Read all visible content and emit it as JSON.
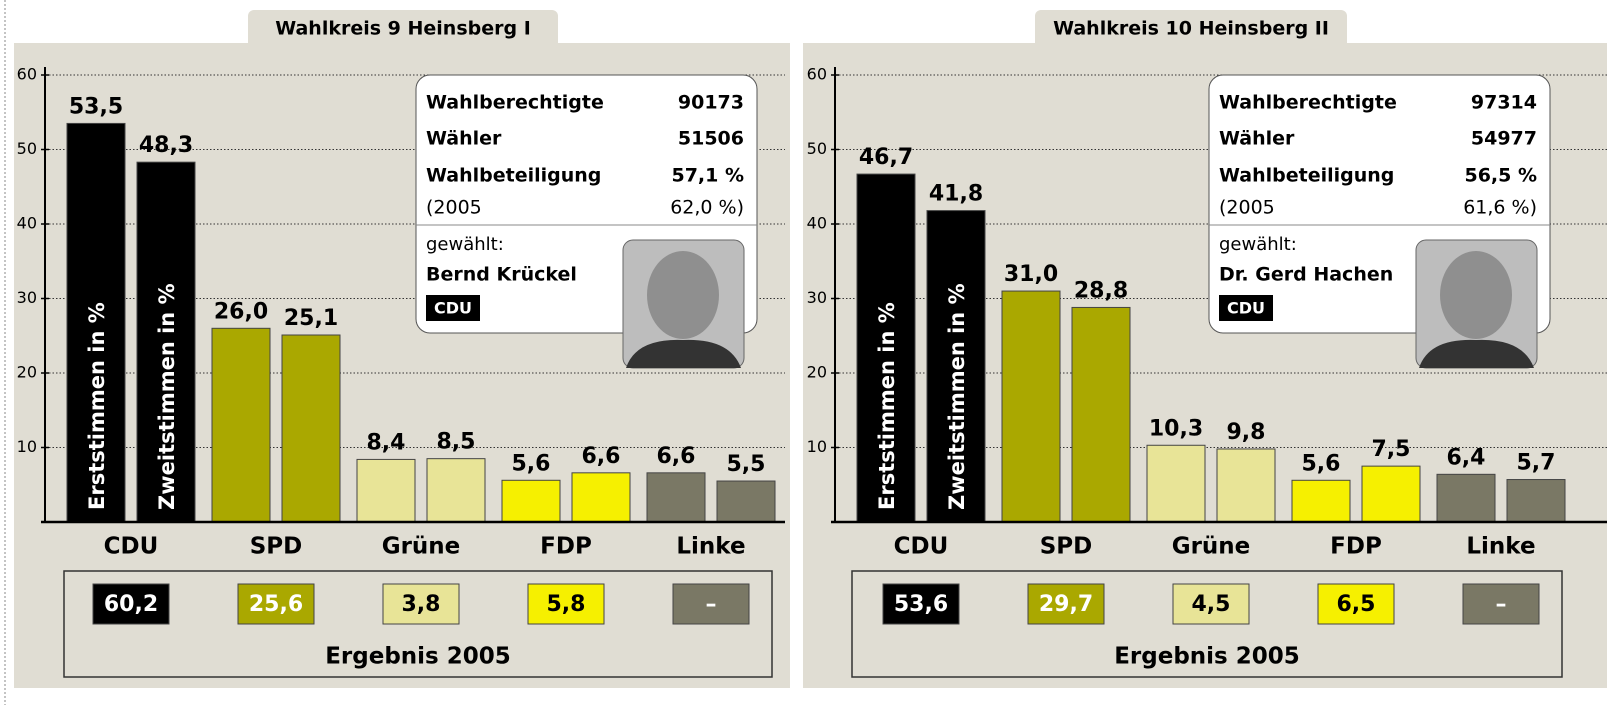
{
  "chart_data": [
    {
      "type": "bar",
      "tab": "Wahlkreis 9 Heinsberg I",
      "categories": [
        "CDU",
        "SPD",
        "Grüne",
        "FDP",
        "Linke"
      ],
      "colors": [
        "#000000",
        "#aaa800",
        "#e8e497",
        "#f6f000",
        "#7a7865"
      ],
      "series": [
        {
          "name": "Erststimmen in %",
          "values": [
            53.5,
            26.0,
            8.4,
            5.6,
            6.6
          ],
          "value_labels": [
            "53,5",
            "26,0",
            "8,4",
            "5,6",
            "6,6"
          ]
        },
        {
          "name": "Zweitstimmen in %",
          "values": [
            48.3,
            25.1,
            8.5,
            6.6,
            5.5
          ],
          "value_labels": [
            "48,3",
            "25,1",
            "8,5",
            "6,6",
            "5,5"
          ]
        }
      ],
      "ylim": [
        0,
        60
      ],
      "yticks": [
        10,
        20,
        30,
        40,
        50,
        60
      ],
      "grid": true,
      "results_title": "Ergebnis 2005",
      "results": {
        "values": [
          60.2,
          25.6,
          3.8,
          5.8,
          null
        ],
        "value_labels": [
          "60,2",
          "25,6",
          "3,8",
          "5,8",
          "–"
        ]
      },
      "info": {
        "rows": [
          [
            "Wahlberechtigte",
            "90173"
          ],
          [
            "Wähler",
            "51506"
          ],
          [
            "Wahlbeteiligung",
            "57,1 %"
          ]
        ],
        "previous": [
          "(2005",
          "62,0 %)"
        ],
        "elected_label": "gewählt:",
        "elected": "Bernd Krückel",
        "party": "CDU"
      }
    },
    {
      "type": "bar",
      "tab": "Wahlkreis 10 Heinsberg II",
      "categories": [
        "CDU",
        "SPD",
        "Grüne",
        "FDP",
        "Linke"
      ],
      "colors": [
        "#000000",
        "#aaa800",
        "#e8e497",
        "#f6f000",
        "#7a7865"
      ],
      "series": [
        {
          "name": "Erststimmen in %",
          "values": [
            46.7,
            31.0,
            10.3,
            5.6,
            6.4
          ],
          "value_labels": [
            "46,7",
            "31,0",
            "10,3",
            "5,6",
            "6,4"
          ]
        },
        {
          "name": "Zweitstimmen in %",
          "values": [
            41.8,
            28.8,
            9.8,
            7.5,
            5.7
          ],
          "value_labels": [
            "41,8",
            "28,8",
            "9,8",
            "7,5",
            "5,7"
          ]
        }
      ],
      "ylim": [
        0,
        60
      ],
      "yticks": [
        10,
        20,
        30,
        40,
        50,
        60
      ],
      "grid": true,
      "results_title": "Ergebnis 2005",
      "results": {
        "values": [
          53.6,
          29.7,
          4.5,
          6.5,
          null
        ],
        "value_labels": [
          "53,6",
          "29,7",
          "4,5",
          "6,5",
          "–"
        ]
      },
      "info": {
        "rows": [
          [
            "Wahlberechtigte",
            "97314"
          ],
          [
            "Wähler",
            "54977"
          ],
          [
            "Wahlbeteiligung",
            "56,5 %"
          ]
        ],
        "previous": [
          "(2005",
          "61,6 %)"
        ],
        "elected_label": "gewählt:",
        "elected": "Dr. Gerd Hachen",
        "party": "CDU"
      }
    }
  ]
}
